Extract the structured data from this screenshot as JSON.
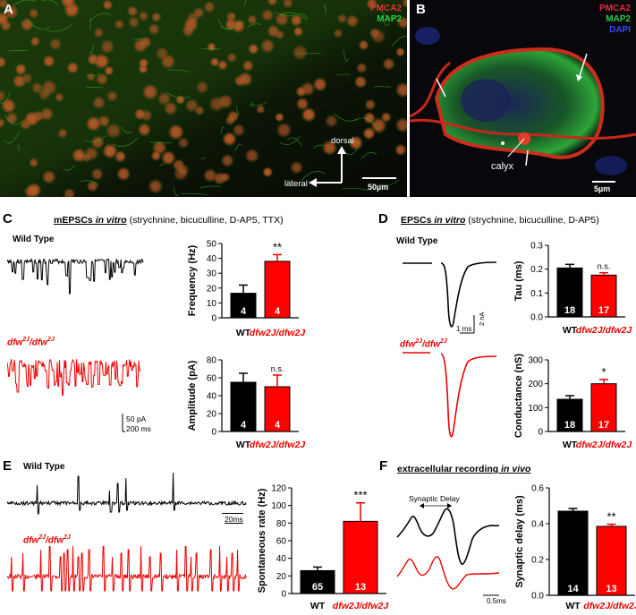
{
  "panels": {
    "A": {
      "letter": "A",
      "legend": [
        "PMCA2",
        "MAP2"
      ],
      "legend_colors": [
        "#e0303a",
        "#2ecc40"
      ],
      "orientation": {
        "dorsal": "dorsal",
        "lateral": "lateral"
      },
      "scalebar": "50µm"
    },
    "B": {
      "letter": "B",
      "legend": [
        "PMCA2",
        "MAP2",
        "DAPI"
      ],
      "legend_colors": [
        "#e0303a",
        "#2ecc40",
        "#3a4bff"
      ],
      "calyx_label": "calyx",
      "scalebar": "5µm"
    },
    "C": {
      "letter": "C",
      "title_plain": "mEPSCs ",
      "title_italic": "in vitro",
      "title_rest": " (strychnine, bicuculline, D-AP5, TTX)",
      "wt_label": "Wild Type",
      "mut_label": "dfw2J/dfw2J",
      "scale_y": "50 pA",
      "scale_x": "200 ms"
    },
    "D": {
      "letter": "D",
      "title_plain": "EPSCs ",
      "title_italic": "in vitro",
      "title_rest": " (strychnine, bicuculline, D-AP5)",
      "wt_label": "Wild Type",
      "mut_label": "dfw2J/dfw2J",
      "scale_y": "2 nA",
      "scale_x": "1 ms"
    },
    "E": {
      "letter": "E",
      "wt_label": "Wild Type",
      "mut_label": "dfw2J/dfw2J",
      "scale_x": "20ms"
    },
    "F": {
      "letter": "F",
      "title_plain": "extracellular recording ",
      "title_italic": "in vivo",
      "delay_label": "Synaptic Delay",
      "scale_x": "0.5ms"
    }
  },
  "chart_data": [
    {
      "id": "C-frequency",
      "type": "bar",
      "categories": [
        "WT",
        "dfw2J/dfw2J"
      ],
      "values": [
        16.5,
        38
      ],
      "errors": [
        5.5,
        4.5
      ],
      "n": [
        "4",
        "4"
      ],
      "colors": [
        "#000000",
        "#ff0000"
      ],
      "ylabel": "Frequency (Hz)",
      "ylim": [
        0,
        50
      ],
      "yticks": [
        0,
        10,
        20,
        30,
        40,
        50
      ],
      "significance": "**"
    },
    {
      "id": "C-amplitude",
      "type": "bar",
      "categories": [
        "WT",
        "dfw2J/dfw2J"
      ],
      "values": [
        55,
        50
      ],
      "errors": [
        10,
        13
      ],
      "n": [
        "4",
        "4"
      ],
      "colors": [
        "#000000",
        "#ff0000"
      ],
      "ylabel": "Amplitude (pA)",
      "ylim": [
        0,
        80
      ],
      "yticks": [
        0,
        20,
        40,
        60,
        80
      ],
      "significance": "n.s."
    },
    {
      "id": "D-tau",
      "type": "bar",
      "categories": [
        "WT",
        "dfw2J/dfw2J"
      ],
      "values": [
        0.205,
        0.175
      ],
      "errors": [
        0.015,
        0.01
      ],
      "n": [
        "18",
        "17"
      ],
      "colors": [
        "#000000",
        "#ff0000"
      ],
      "ylabel": "Tau (ms)",
      "ylim": [
        0,
        0.3
      ],
      "yticks": [
        0.0,
        0.1,
        0.2,
        0.3
      ],
      "significance": "n.s."
    },
    {
      "id": "D-conductance",
      "type": "bar",
      "categories": [
        "WT",
        "dfw2J/dfw2J"
      ],
      "values": [
        135,
        200
      ],
      "errors": [
        15,
        18
      ],
      "n": [
        "18",
        "17"
      ],
      "colors": [
        "#000000",
        "#ff0000"
      ],
      "ylabel": "Conductance (nS)",
      "ylim": [
        0,
        300
      ],
      "yticks": [
        0,
        100,
        200,
        300
      ],
      "significance": "*"
    },
    {
      "id": "E-spontaneous",
      "type": "bar",
      "categories": [
        "WT",
        "dfw2J/dfw2J"
      ],
      "values": [
        26,
        82
      ],
      "errors": [
        4,
        21
      ],
      "n": [
        "65",
        "13"
      ],
      "colors": [
        "#000000",
        "#ff0000"
      ],
      "ylabel": "Spontaneous rate (Hz)",
      "ylim": [
        0,
        120
      ],
      "yticks": [
        0,
        20,
        40,
        60,
        80,
        100,
        120
      ],
      "significance": "***"
    },
    {
      "id": "F-delay",
      "type": "bar",
      "categories": [
        "WT",
        "dfw2J/dfw2J"
      ],
      "values": [
        0.47,
        0.385
      ],
      "errors": [
        0.015,
        0.012
      ],
      "n": [
        "14",
        "13"
      ],
      "colors": [
        "#000000",
        "#ff0000"
      ],
      "ylabel": "Synaptic delay (ms)",
      "ylim": [
        0,
        0.6
      ],
      "yticks": [
        0.0,
        0.2,
        0.4,
        0.6
      ],
      "significance": "**"
    }
  ]
}
